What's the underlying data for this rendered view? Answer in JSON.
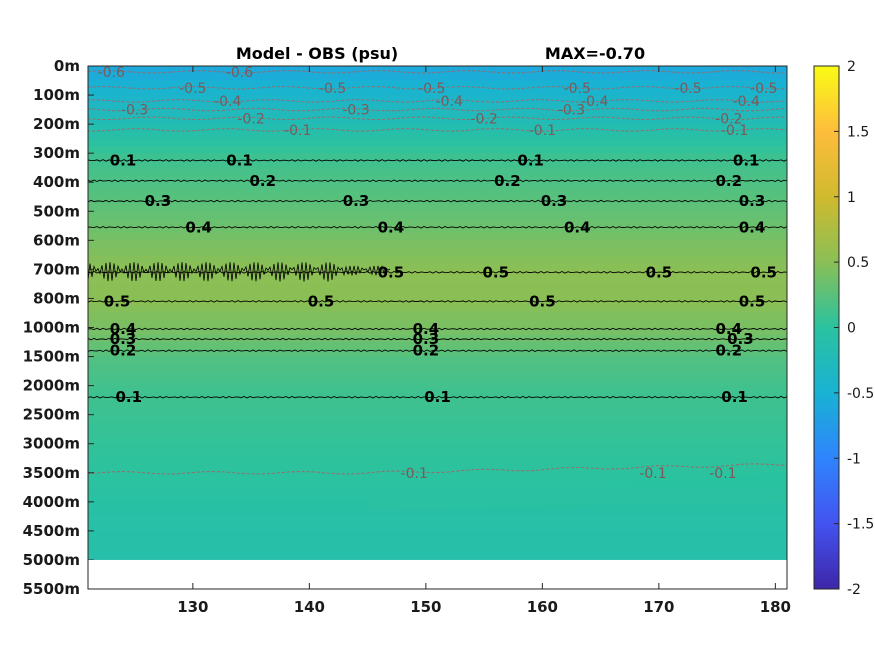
{
  "chart_data": {
    "type": "heatmap",
    "title": "Model - OBS (psu)",
    "max_label": "MAX=-0.70",
    "xlim": [
      121,
      181
    ],
    "x_ticks": [
      130,
      140,
      150,
      160,
      170,
      180
    ],
    "y_ticks": [
      "0m",
      "100m",
      "200m",
      "300m",
      "400m",
      "500m",
      "600m",
      "700m",
      "800m",
      "1000m",
      "1500m",
      "2000m",
      "2500m",
      "3000m",
      "3500m",
      "4000m",
      "4500m",
      "5000m",
      "5500m"
    ],
    "data_bottom": "5000m",
    "colormap": "parula",
    "clim": [
      -2,
      2
    ],
    "colorbar_ticks": [
      "2",
      "1.5",
      "1",
      "0.5",
      "0",
      "-0.5",
      "-1",
      "-1.5",
      "-2"
    ],
    "colorbar_colors": [
      "#3e26a8",
      "#4353f0",
      "#2f84fd",
      "#19b2d3",
      "#2ac29f",
      "#8abf56",
      "#d0ba2e",
      "#fdbd3c",
      "#f9fb15"
    ],
    "field_profile": [
      {
        "depth_level": 0,
        "value": -0.6
      },
      {
        "depth_level": 1,
        "value": -0.4
      },
      {
        "depth_level": 2,
        "value": -0.15
      },
      {
        "depth_level": 3,
        "value": 0.1
      },
      {
        "depth_level": 4,
        "value": 0.2
      },
      {
        "depth_level": 5,
        "value": 0.3
      },
      {
        "depth_level": 6,
        "value": 0.42
      },
      {
        "depth_level": 7,
        "value": 0.52
      },
      {
        "depth_level": 8,
        "value": 0.5
      },
      {
        "depth_level": 9,
        "value": 0.4
      },
      {
        "depth_level": 10,
        "value": 0.2
      },
      {
        "depth_level": 11,
        "value": 0.12
      },
      {
        "depth_level": 12,
        "value": 0.08
      },
      {
        "depth_level": 13,
        "value": 0.04
      },
      {
        "depth_level": 14,
        "value": 0.0
      },
      {
        "depth_level": 15,
        "value": -0.05
      },
      {
        "depth_level": 16,
        "value": -0.08
      },
      {
        "depth_level": 17,
        "value": -0.1
      }
    ],
    "contours": [
      {
        "value": 0.1,
        "depth_level": 3.25,
        "labels": [
          {
            "x": 124,
            "text": "0.1"
          },
          {
            "x": 134,
            "text": "0.1"
          },
          {
            "x": 159,
            "text": "0.1"
          },
          {
            "x": 177.5,
            "text": "0.1"
          }
        ]
      },
      {
        "value": 0.2,
        "depth_level": 3.95,
        "labels": [
          {
            "x": 136,
            "text": "0.2"
          },
          {
            "x": 157,
            "text": "0.2"
          },
          {
            "x": 176,
            "text": "0.2"
          }
        ]
      },
      {
        "value": 0.3,
        "depth_level": 4.65,
        "labels": [
          {
            "x": 127,
            "text": "0.3"
          },
          {
            "x": 144,
            "text": "0.3"
          },
          {
            "x": 161,
            "text": "0.3"
          },
          {
            "x": 178,
            "text": "0.3"
          }
        ]
      },
      {
        "value": 0.4,
        "depth_level": 5.55,
        "labels": [
          {
            "x": 130.5,
            "text": "0.4"
          },
          {
            "x": 147,
            "text": "0.4"
          },
          {
            "x": 163,
            "text": "0.4"
          },
          {
            "x": 178,
            "text": "0.4"
          }
        ]
      },
      {
        "value": 0.5,
        "depth_level": 7.1,
        "labels": [
          {
            "x": 147,
            "text": "0.5"
          },
          {
            "x": 156,
            "text": "0.5"
          },
          {
            "x": 170,
            "text": "0.5"
          },
          {
            "x": 179,
            "text": "0.5"
          }
        ]
      },
      {
        "value": 0.5,
        "depth_level": 8.1,
        "labels": [
          {
            "x": 123.5,
            "text": "0.5"
          },
          {
            "x": 141,
            "text": "0.5"
          },
          {
            "x": 160,
            "text": "0.5"
          },
          {
            "x": 178,
            "text": "0.5"
          }
        ]
      },
      {
        "value": 0.4,
        "depth_level": 9.05,
        "labels": [
          {
            "x": 124,
            "text": "0.4"
          },
          {
            "x": 150,
            "text": "0.4"
          },
          {
            "x": 176,
            "text": "0.4"
          }
        ]
      },
      {
        "value": 0.3,
        "depth_level": 9.4,
        "labels": [
          {
            "x": 124,
            "text": "0.3"
          },
          {
            "x": 150,
            "text": "0.3"
          },
          {
            "x": 177,
            "text": "0.3"
          }
        ]
      },
      {
        "value": 0.2,
        "depth_level": 9.8,
        "labels": [
          {
            "x": 124,
            "text": "0.2"
          },
          {
            "x": 150,
            "text": "0.2"
          },
          {
            "x": 176,
            "text": "0.2"
          }
        ]
      },
      {
        "value": 0.1,
        "depth_level": 11.4,
        "labels": [
          {
            "x": 124.5,
            "text": "0.1"
          },
          {
            "x": 151,
            "text": "0.1"
          },
          {
            "x": 176.5,
            "text": "0.1"
          }
        ]
      },
      {
        "value": -0.5,
        "depth_level": 0.75,
        "labels": [
          {
            "x": 130,
            "text": "-0.5"
          },
          {
            "x": 142,
            "text": "-0.5"
          },
          {
            "x": 150.5,
            "text": "-0.5"
          },
          {
            "x": 163,
            "text": "-0.5"
          },
          {
            "x": 172.5,
            "text": "-0.5"
          },
          {
            "x": 179,
            "text": "-0.5"
          }
        ]
      },
      {
        "value": -0.4,
        "depth_level": 1.2,
        "labels": [
          {
            "x": 133,
            "text": "-0.4"
          },
          {
            "x": 152,
            "text": "-0.4"
          },
          {
            "x": 164.5,
            "text": "-0.4"
          },
          {
            "x": 177.5,
            "text": "-0.4"
          }
        ]
      },
      {
        "value": -0.3,
        "depth_level": 1.5,
        "labels": [
          {
            "x": 125,
            "text": "-0.3"
          },
          {
            "x": 144,
            "text": "-0.3"
          },
          {
            "x": 162.5,
            "text": "-0.3"
          }
        ]
      },
      {
        "value": -0.2,
        "depth_level": 1.8,
        "labels": [
          {
            "x": 135,
            "text": "-0.2"
          },
          {
            "x": 155,
            "text": "-0.2"
          },
          {
            "x": 176,
            "text": "-0.2"
          }
        ]
      },
      {
        "value": -0.1,
        "depth_level": 2.2,
        "labels": [
          {
            "x": 139,
            "text": "-0.1"
          },
          {
            "x": 160,
            "text": "-0.1"
          },
          {
            "x": 176.5,
            "text": "-0.1"
          }
        ]
      },
      {
        "value": -0.1,
        "depth_level": 14.0,
        "labels": [
          {
            "x": 149,
            "text": "-0.1"
          },
          {
            "x": 169.5,
            "text": "-0.1"
          },
          {
            "x": 175.5,
            "text": "-0.1"
          }
        ]
      },
      {
        "value": -0.6,
        "depth_level": 0.2,
        "labels": [
          {
            "x": 123,
            "text": "-0.6"
          },
          {
            "x": 134,
            "text": "-0.6"
          }
        ]
      }
    ]
  }
}
